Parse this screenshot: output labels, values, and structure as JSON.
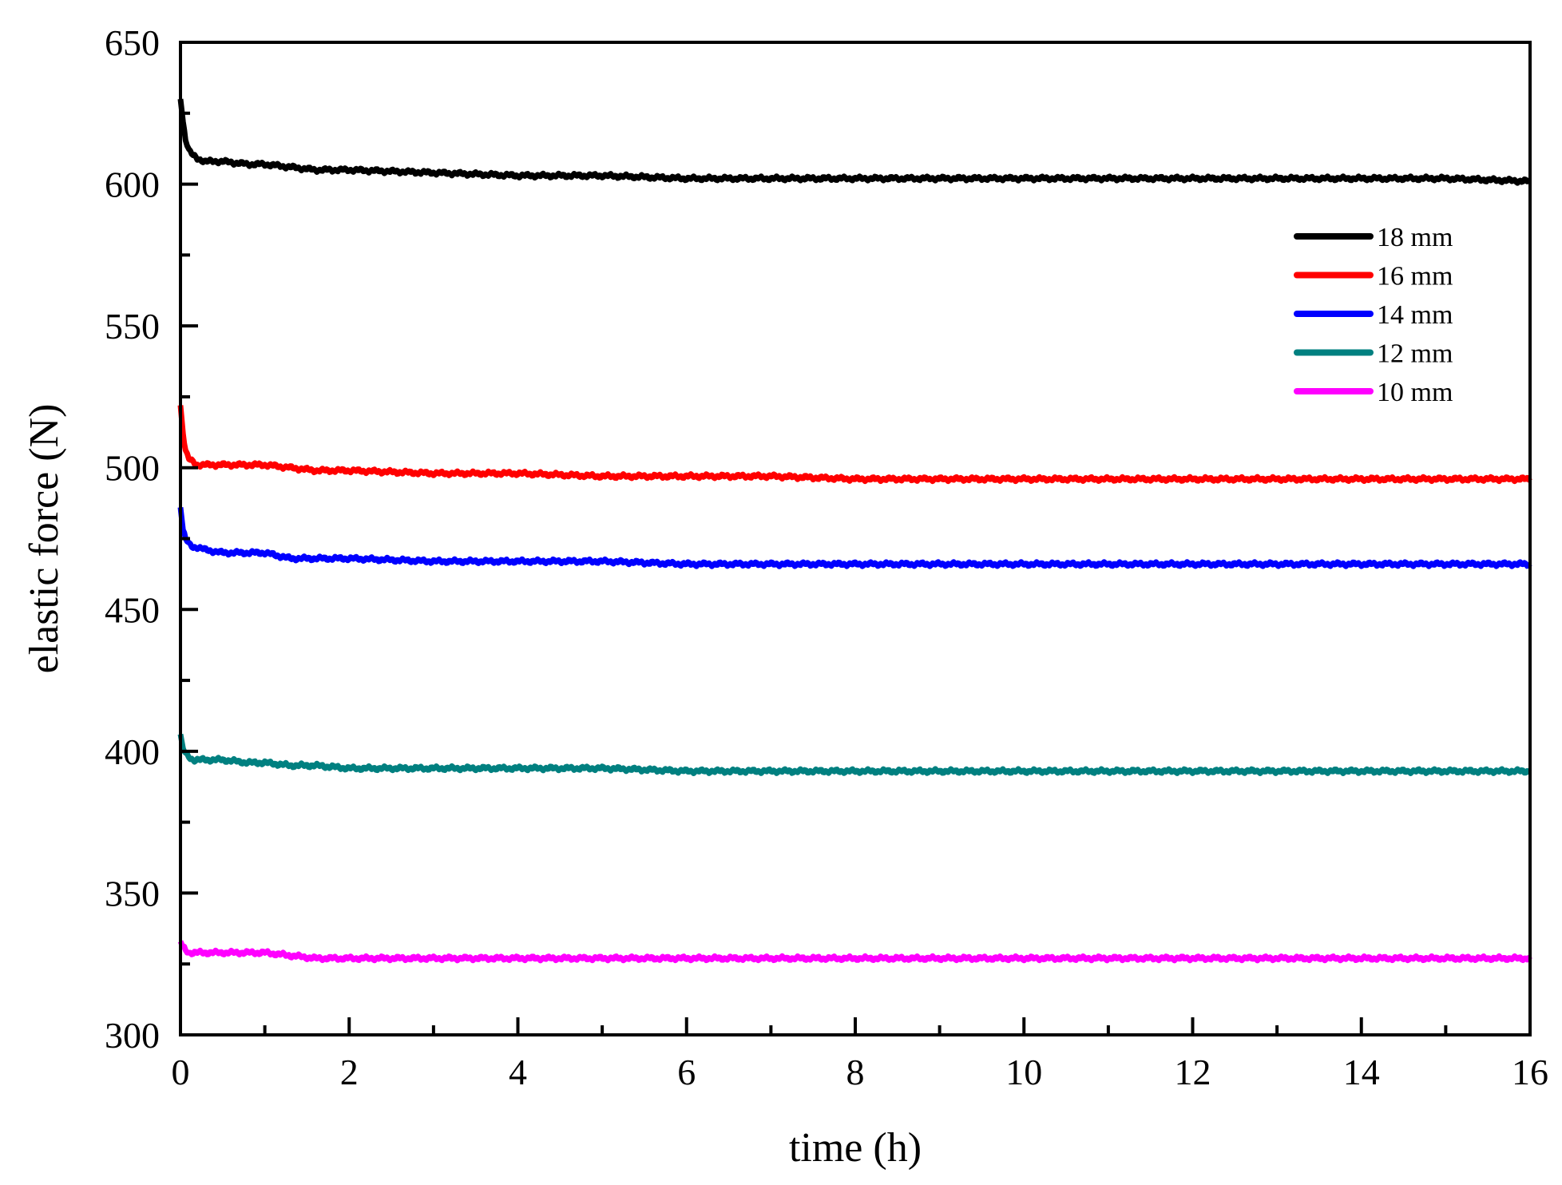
{
  "chart_data": {
    "type": "line",
    "title": "",
    "xlabel": "time (h)",
    "ylabel": "elastic force (N)",
    "xlim": [
      0,
      16
    ],
    "ylim": [
      300,
      650
    ],
    "x_major_ticks": [
      0,
      2,
      4,
      6,
      8,
      10,
      12,
      14,
      16
    ],
    "x_minor_ticks": [
      1,
      3,
      5,
      7,
      9,
      11,
      13,
      15
    ],
    "y_major_ticks": [
      300,
      350,
      400,
      450,
      500,
      550,
      600,
      650
    ],
    "y_minor_ticks": [
      325,
      375,
      425,
      475,
      525,
      575,
      625
    ],
    "grid": false,
    "legend_position": "top-right",
    "series": [
      {
        "name": "18 mm",
        "color": "#000000",
        "x": [
          0,
          0.03,
          0.06,
          0.1,
          0.15,
          0.2,
          0.3,
          0.5,
          0.8,
          1.0,
          1.3,
          1.6,
          2,
          3,
          4,
          5,
          6,
          7,
          8,
          9,
          10,
          11,
          12,
          13,
          14,
          15,
          16
        ],
        "y": [
          630,
          622,
          616,
          612,
          610,
          609,
          608,
          608,
          607,
          607,
          606,
          605,
          605,
          604,
          603,
          603,
          602,
          602,
          602,
          602,
          602,
          602,
          602,
          602,
          602,
          602,
          601
        ]
      },
      {
        "name": "16 mm",
        "color": "#ff0000",
        "x": [
          0,
          0.03,
          0.06,
          0.1,
          0.15,
          0.2,
          0.3,
          0.5,
          0.8,
          1.0,
          1.3,
          1.6,
          2,
          3,
          4,
          5,
          6,
          7,
          8,
          9,
          10,
          11,
          12,
          13,
          14,
          15,
          16
        ],
        "y": [
          522,
          512,
          506,
          503,
          502,
          501,
          501,
          501,
          501,
          501,
          500,
          499,
          499,
          498,
          498,
          497,
          497,
          497,
          496,
          496,
          496,
          496,
          496,
          496,
          496,
          496,
          496
        ]
      },
      {
        "name": "14 mm",
        "color": "#0000ff",
        "x": [
          0,
          0.03,
          0.06,
          0.1,
          0.15,
          0.2,
          0.3,
          0.5,
          0.8,
          1.0,
          1.3,
          1.6,
          2,
          3,
          4,
          5,
          6,
          7,
          8,
          9,
          10,
          11,
          12,
          13,
          14,
          15,
          16
        ],
        "y": [
          486,
          478,
          475,
          473,
          472,
          472,
          471,
          470,
          470,
          470,
          468,
          468,
          468,
          467,
          467,
          467,
          466,
          466,
          466,
          466,
          466,
          466,
          466,
          466,
          466,
          466,
          466
        ]
      },
      {
        "name": "12 mm",
        "color": "#008080",
        "x": [
          0,
          0.03,
          0.06,
          0.1,
          0.15,
          0.2,
          0.3,
          0.5,
          0.8,
          1.0,
          1.3,
          1.6,
          2,
          3,
          4,
          5,
          6,
          7,
          8,
          9,
          10,
          11,
          12,
          13,
          14,
          15,
          16
        ],
        "y": [
          406,
          401,
          399,
          398,
          397,
          397,
          397,
          397,
          396,
          396,
          395,
          395,
          394,
          394,
          394,
          394,
          393,
          393,
          393,
          393,
          393,
          393,
          393,
          393,
          393,
          393,
          393
        ]
      },
      {
        "name": "10 mm",
        "color": "#ff00ff",
        "x": [
          0,
          0.03,
          0.06,
          0.1,
          0.15,
          0.2,
          0.3,
          0.5,
          0.8,
          1.0,
          1.3,
          1.6,
          2,
          3,
          4,
          5,
          6,
          7,
          8,
          9,
          10,
          11,
          12,
          13,
          14,
          15,
          16
        ],
        "y": [
          333,
          331,
          330,
          329,
          329,
          329,
          329,
          329,
          329,
          329,
          328,
          327,
          327,
          327,
          327,
          327,
          327,
          327,
          327,
          327,
          327,
          327,
          327,
          327,
          327,
          327,
          327
        ]
      }
    ]
  }
}
